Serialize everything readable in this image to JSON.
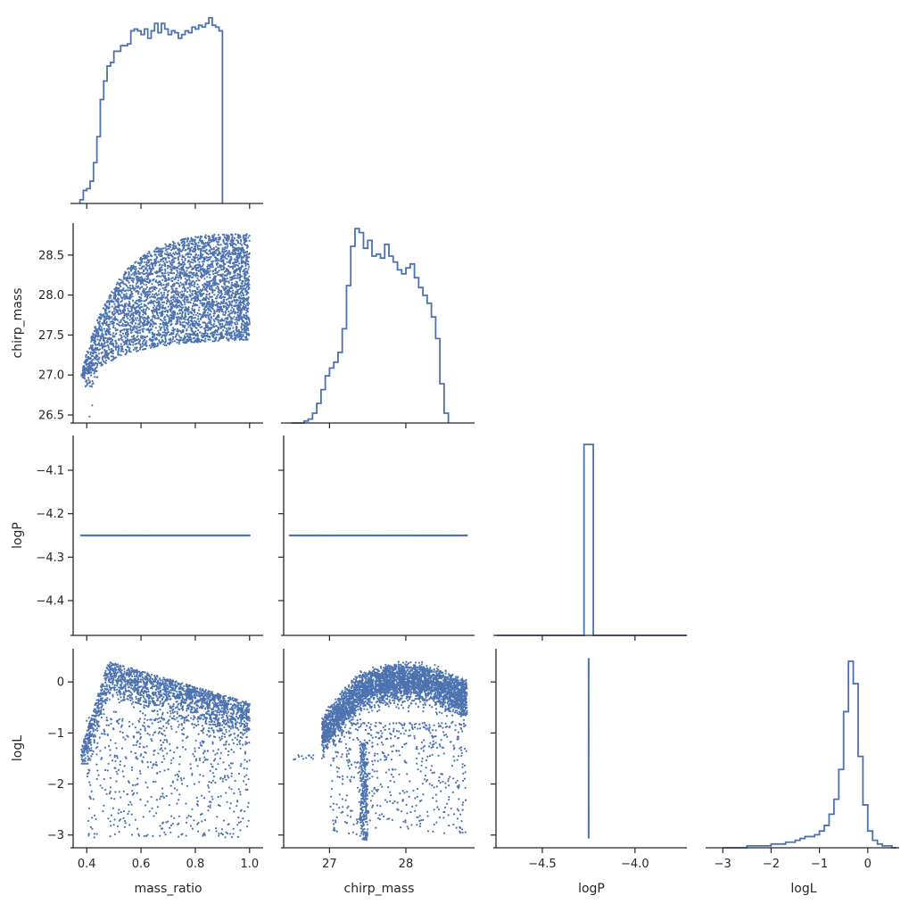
{
  "chart_data": {
    "type": "pairplot",
    "layout": "corner",
    "variables": [
      "mass_ratio",
      "chirp_mass",
      "logP",
      "logL"
    ],
    "color": "#4c72b0",
    "axes": {
      "mass_ratio": {
        "label": "mass_ratio",
        "lim": [
          0.35,
          1.05
        ],
        "ticks": [
          0.4,
          0.6,
          0.8,
          1.0
        ],
        "tick_labels": [
          "0.4",
          "0.6",
          "0.8",
          "1.0"
        ]
      },
      "chirp_mass": {
        "label": "chirp_mass",
        "lim": [
          26.4,
          28.9
        ],
        "ticks": [
          26.5,
          27.0,
          27.5,
          28.0,
          28.5
        ],
        "tick_labels": [
          "26.5",
          "27.0",
          "27.5",
          "28.0",
          "28.5"
        ],
        "x_ticks": [
          27,
          28
        ],
        "x_tick_labels": [
          "27",
          "28"
        ]
      },
      "logP": {
        "label": "logP",
        "lim": [
          -4.48,
          -4.02
        ],
        "ticks": [
          -4.4,
          -4.3,
          -4.2,
          -4.1
        ],
        "tick_labels": [
          "−4.4",
          "−4.3",
          "−4.2",
          "−4.1"
        ],
        "x_lim": [
          -4.75,
          -3.72
        ],
        "x_ticks": [
          -4.5,
          -4.0
        ],
        "x_tick_labels": [
          "−4.5",
          "−4.0"
        ]
      },
      "logL": {
        "label": "logL",
        "lim": [
          -3.25,
          0.65
        ],
        "ticks": [
          -3,
          -2,
          -1,
          0
        ],
        "tick_labels": [
          "−3",
          "−2",
          "−1",
          "0"
        ],
        "x_ticks": [
          -3,
          -2,
          -1,
          0
        ],
        "x_tick_labels": [
          "−3",
          "−2",
          "−1",
          "0"
        ]
      }
    },
    "histograms": {
      "mass_ratio": {
        "bin_start": 0.375,
        "bin_width": 0.0125,
        "counts": [
          0.02,
          0.07,
          0.08,
          0.12,
          0.22,
          0.36,
          0.56,
          0.66,
          0.74,
          0.76,
          0.82,
          0.82,
          0.85,
          0.85,
          0.86,
          0.93,
          0.94,
          0.93,
          0.91,
          0.94,
          0.89,
          0.93,
          0.97,
          0.92,
          0.97,
          0.94,
          0.91,
          0.93,
          0.92,
          0.89,
          0.91,
          0.93,
          0.92,
          0.95,
          0.94,
          0.96,
          0.95,
          0.97,
          1.0,
          0.96,
          0.95,
          0.93
        ]
      },
      "chirp_mass": {
        "bin_start": 26.5,
        "bin_width": 0.0556,
        "counts": [
          0.0,
          0.0,
          0.0,
          0.01,
          0.02,
          0.05,
          0.1,
          0.17,
          0.24,
          0.28,
          0.31,
          0.36,
          0.48,
          0.7,
          0.9,
          0.99,
          0.97,
          0.89,
          0.93,
          0.85,
          0.86,
          0.84,
          0.91,
          0.85,
          0.82,
          0.78,
          0.76,
          0.79,
          0.81,
          0.74,
          0.69,
          0.65,
          0.61,
          0.54,
          0.43,
          0.2,
          0.05
        ]
      },
      "logP": {
        "spike_x": -4.25,
        "spike_width": 0.05,
        "peak": 1.0
      },
      "logL": {
        "bin_start": -3.0,
        "bin_width": 0.1,
        "counts": [
          0.0,
          0.0,
          0.0,
          0.0,
          0.0,
          0.01,
          0.01,
          0.01,
          0.01,
          0.01,
          0.02,
          0.02,
          0.02,
          0.03,
          0.03,
          0.04,
          0.05,
          0.06,
          0.06,
          0.07,
          0.09,
          0.12,
          0.18,
          0.26,
          0.42,
          0.73,
          1.0,
          0.88,
          0.49,
          0.23,
          0.09,
          0.04,
          0.02,
          0.01,
          0.01,
          0.0
        ]
      }
    },
    "scatter": {
      "chirp_mass_vs_mass_ratio": "density fills 0.38-1.0 mass ratio; upper envelope rises from ~27.0 to ~28.8, lower envelope from ~26.8 to ~27.4",
      "logP_value": -4.25,
      "logL_vs_mass_ratio": "upper ridge peaks ~0.4 near mass_ratio 0.48, decreasing to ~-0.4 at 1.0; sparse points down to -3",
      "logL_vs_chirp_mass": "arched distribution peaking ~0.4 near chirp_mass 28.0; vertical streak near 27.45 down to -3",
      "logL_vs_logP": "vertical line at logP -4.25 from -3.05 to 0.45"
    }
  }
}
